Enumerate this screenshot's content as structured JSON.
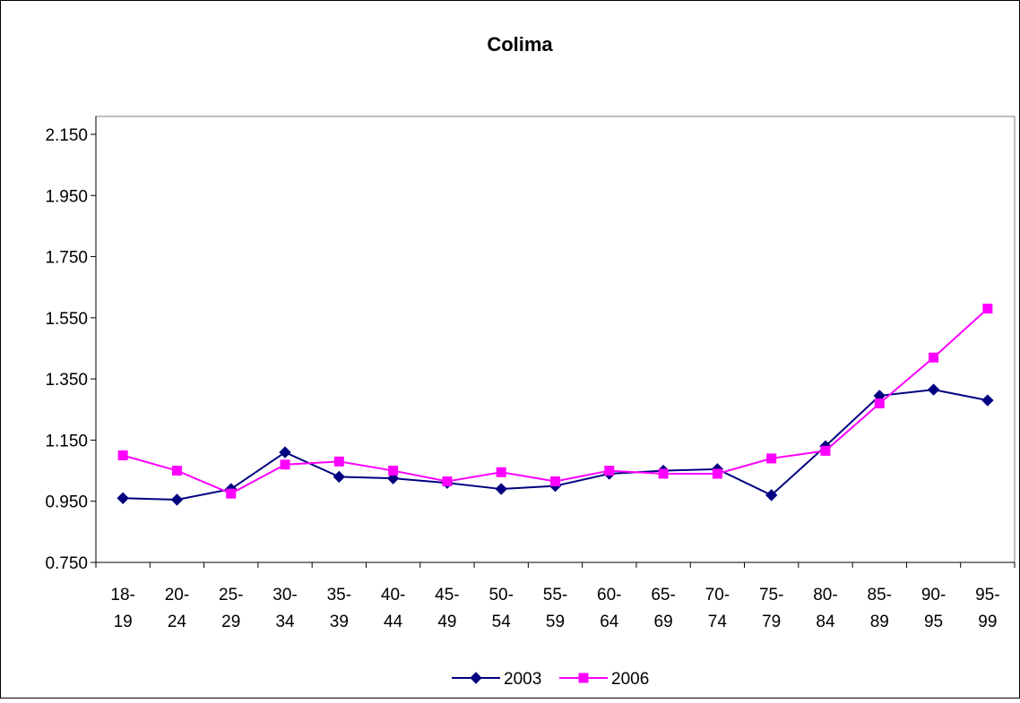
{
  "chart_data": {
    "type": "line",
    "title": "Colima",
    "xlabel": "",
    "ylabel": "",
    "ylim": [
      0.75,
      2.15
    ],
    "yticks": [
      "0.750",
      "0.950",
      "1.150",
      "1.350",
      "1.550",
      "1.750",
      "1.950",
      "2.150"
    ],
    "ytick_values": [
      0.75,
      0.95,
      1.15,
      1.35,
      1.55,
      1.75,
      1.95,
      2.15
    ],
    "categories": [
      [
        "18-",
        "19"
      ],
      [
        "20-",
        "24"
      ],
      [
        "25-",
        "29"
      ],
      [
        "30-",
        "34"
      ],
      [
        "35-",
        "39"
      ],
      [
        "40-",
        "44"
      ],
      [
        "45-",
        "49"
      ],
      [
        "50-",
        "54"
      ],
      [
        "55-",
        "59"
      ],
      [
        "60-",
        "64"
      ],
      [
        "65-",
        "69"
      ],
      [
        "70-",
        "74"
      ],
      [
        "75-",
        "79"
      ],
      [
        "80-",
        "84"
      ],
      [
        "85-",
        "89"
      ],
      [
        "90-",
        "95"
      ],
      [
        "95-",
        "99"
      ]
    ],
    "grid": false,
    "legend_position": "bottom",
    "series": [
      {
        "name": "2003",
        "color": "#000080",
        "marker": "diamond",
        "values": [
          0.96,
          0.955,
          0.99,
          1.11,
          1.03,
          1.025,
          1.01,
          0.99,
          1.0,
          1.04,
          1.05,
          1.055,
          0.97,
          1.13,
          1.295,
          1.315,
          1.28
        ]
      },
      {
        "name": "2006",
        "color": "#ff00ff",
        "marker": "square",
        "values": [
          1.1,
          1.05,
          0.975,
          1.07,
          1.08,
          1.05,
          1.015,
          1.045,
          1.015,
          1.05,
          1.04,
          1.04,
          1.09,
          1.115,
          1.27,
          1.42,
          1.58
        ]
      }
    ]
  }
}
